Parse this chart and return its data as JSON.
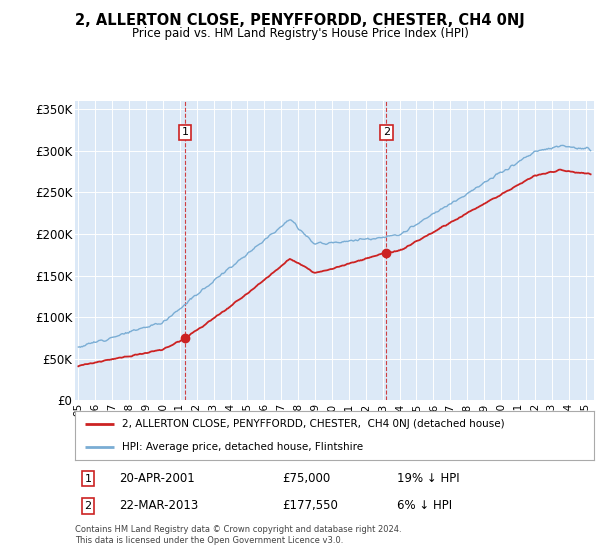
{
  "title": "2, ALLERTON CLOSE, PENYFFORDD, CHESTER, CH4 0NJ",
  "subtitle": "Price paid vs. HM Land Registry's House Price Index (HPI)",
  "plot_bg_color": "#dce9f7",
  "ylim": [
    0,
    360000
  ],
  "yticks": [
    0,
    50000,
    100000,
    150000,
    200000,
    250000,
    300000,
    350000
  ],
  "ytick_labels": [
    "£0",
    "£50K",
    "£100K",
    "£150K",
    "£200K",
    "£250K",
    "£300K",
    "£350K"
  ],
  "hpi_color": "#7aadd4",
  "price_color": "#cc2222",
  "sale1_year": 2001.3,
  "sale1_price": 75000,
  "sale1_label": "1",
  "sale1_date": "20-APR-2001",
  "sale1_price_str": "£75,000",
  "sale1_pct": "19% ↓ HPI",
  "sale2_year": 2013.22,
  "sale2_price": 177550,
  "sale2_label": "2",
  "sale2_date": "22-MAR-2013",
  "sale2_price_str": "£177,550",
  "sale2_pct": "6% ↓ HPI",
  "legend_line1": "2, ALLERTON CLOSE, PENYFFORDD, CHESTER,  CH4 0NJ (detached house)",
  "legend_line2": "HPI: Average price, detached house, Flintshire",
  "footer": "Contains HM Land Registry data © Crown copyright and database right 2024.\nThis data is licensed under the Open Government Licence v3.0.",
  "xlim_start": 1994.8,
  "xlim_end": 2025.5,
  "xtick_start": 1995,
  "xtick_end": 2025
}
